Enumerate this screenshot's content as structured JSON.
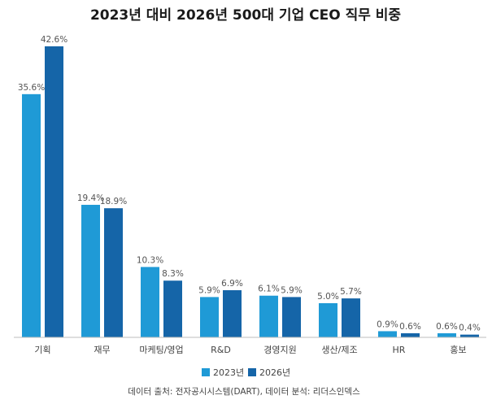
{
  "chart_data": {
    "type": "bar",
    "title": "2023년 대비 2026년 500대 기업 CEO 직무 비중",
    "categories": [
      "기획",
      "재무",
      "마케팅/영업",
      "R&D",
      "경영지원",
      "생산/제조",
      "HR",
      "홍보"
    ],
    "series": [
      {
        "name": "2023년",
        "values": [
          35.6,
          19.4,
          10.3,
          5.9,
          6.1,
          5.0,
          0.9,
          0.6
        ],
        "labels": [
          "35.6%",
          "19.4%",
          "10.3%",
          "5.9%",
          "6.1%",
          "5.0%",
          "0.9%",
          "0.6%"
        ],
        "color": "#1f9ad6"
      },
      {
        "name": "2026년",
        "values": [
          42.6,
          18.9,
          8.3,
          6.9,
          5.9,
          5.7,
          0.6,
          0.4
        ],
        "labels": [
          "42.6%",
          "18.9%",
          "8.3%",
          "6.9%",
          "5.9%",
          "5.7%",
          "0.6%",
          "0.4%"
        ],
        "color": "#1565a8"
      }
    ],
    "ylim": [
      0,
      42.6
    ],
    "grid": false,
    "legend_position": "bottom-center",
    "source": "데이터 출처: 전자공시시스템(DART), 데이터 분석: 리더스인덱스"
  }
}
